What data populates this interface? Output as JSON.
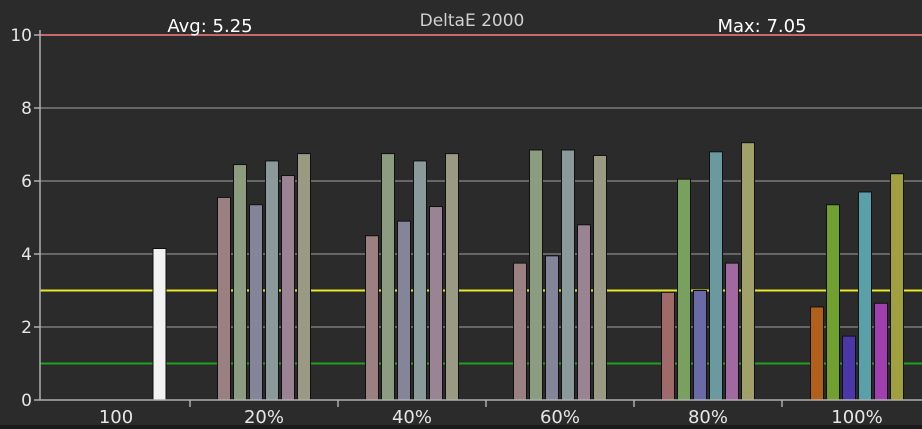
{
  "chart_data": {
    "type": "bar",
    "title": "DeltaE 2000",
    "avg_label": "Avg: 5.25",
    "max_label": "Max: 7.05",
    "xlabel": "",
    "ylabel": "",
    "ylim": [
      0,
      10
    ],
    "y_ticks": [
      "0",
      "2",
      "4",
      "6",
      "8",
      "10"
    ],
    "grid": true,
    "categories": [
      "100",
      "20%",
      "40%",
      "60%",
      "80%",
      "100%"
    ],
    "groups": [
      {
        "label": "100",
        "values": [
          4.15
        ]
      },
      {
        "label": "20%",
        "values": [
          5.55,
          6.45,
          5.35,
          6.55,
          6.15,
          6.75
        ]
      },
      {
        "label": "40%",
        "values": [
          4.5,
          6.75,
          4.9,
          6.55,
          5.3,
          6.75
        ]
      },
      {
        "label": "60%",
        "values": [
          3.75,
          6.85,
          3.95,
          6.85,
          4.8,
          6.7
        ]
      },
      {
        "label": "80%",
        "values": [
          2.95,
          6.05,
          3.0,
          6.8,
          3.75,
          7.05
        ]
      },
      {
        "label": "100%",
        "values": [
          2.55,
          5.35,
          1.75,
          5.7,
          2.65,
          6.2
        ]
      }
    ],
    "reference_lines": [
      {
        "value": 10,
        "color": "#c46a6a"
      },
      {
        "value": 3,
        "color": "#e8e82a"
      },
      {
        "value": 1,
        "color": "#1fa01f"
      }
    ],
    "colors": {
      "background": "#2b2b2b",
      "grid": "#8a8a8a",
      "axis": "#b0b0b0",
      "text": "#e6e6e6",
      "white_bar": "#f2f2f2",
      "group_bars_desaturated": [
        "#9a8080",
        "#8c9c80",
        "#85859a",
        "#8a9a9a",
        "#9a8494",
        "#9a9a84"
      ],
      "group_bars_80": [
        "#a06a6a",
        "#7aa060",
        "#6a6aa6",
        "#6a9aa0",
        "#a06aa0",
        "#a0a06a"
      ],
      "group_bars_100": [
        "#b0601a",
        "#70a030",
        "#4a38a8",
        "#5aa0a8",
        "#a040b0",
        "#a0a040"
      ]
    }
  }
}
